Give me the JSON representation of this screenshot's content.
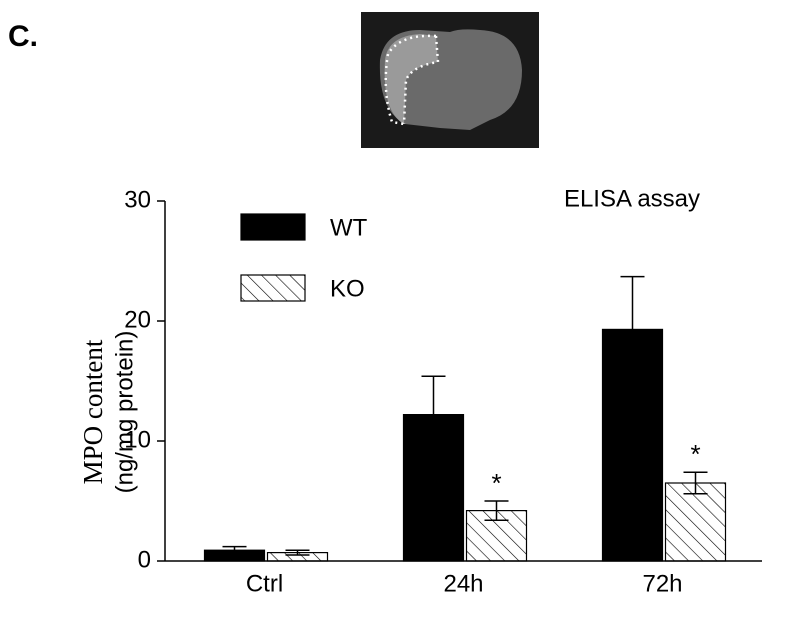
{
  "panel_label": "C.",
  "chart_data": {
    "type": "bar",
    "title": "ELISA assay",
    "ylabel_line1": "MPO content",
    "ylabel_line2": "(ng/mg protein)",
    "categories": [
      "Ctrl",
      "24h",
      "72h"
    ],
    "series": [
      {
        "name": "WT",
        "color": "#000000",
        "hatch": false,
        "values": [
          0.9,
          12.2,
          19.3
        ],
        "errors": [
          0.3,
          3.2,
          4.4
        ]
      },
      {
        "name": "KO",
        "color": "#000000",
        "hatch": true,
        "values": [
          0.7,
          4.2,
          6.5
        ],
        "errors": [
          0.2,
          0.8,
          0.9
        ]
      }
    ],
    "annotations": [
      {
        "text": "*",
        "category": "24h",
        "series": "KO"
      },
      {
        "text": "*",
        "category": "72h",
        "series": "KO"
      }
    ],
    "ylim": [
      0,
      30
    ],
    "yticks": [
      0,
      10,
      20,
      30
    ],
    "grid": false,
    "legend": "upper left"
  }
}
